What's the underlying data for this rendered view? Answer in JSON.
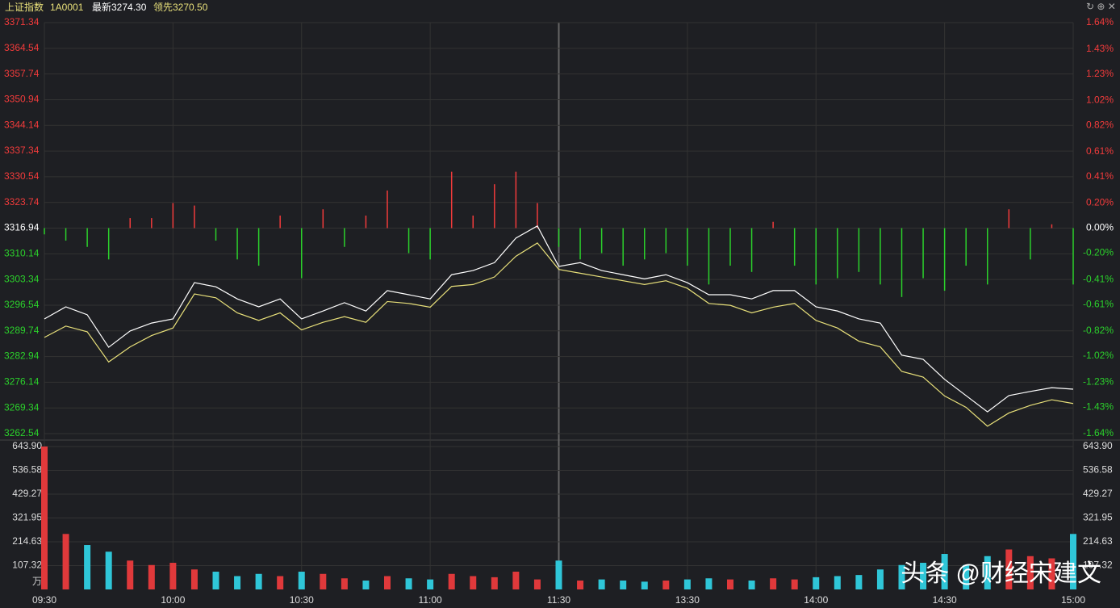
{
  "header": {
    "name": "上证指数",
    "code": "1A0001",
    "latest": "最新3274.30",
    "lead": "领先3270.50"
  },
  "watermark": "头条 @财经宋建文",
  "chart_data": [
    {
      "type": "line",
      "base": 3316.94,
      "x": [
        "09:30",
        "09:35",
        "09:40",
        "09:45",
        "09:50",
        "09:55",
        "10:00",
        "10:05",
        "10:10",
        "10:15",
        "10:20",
        "10:25",
        "10:30",
        "10:35",
        "10:40",
        "10:45",
        "10:50",
        "10:55",
        "11:00",
        "11:05",
        "11:10",
        "11:15",
        "11:20",
        "11:25",
        "11:30",
        "13:05",
        "13:10",
        "13:15",
        "13:20",
        "13:25",
        "13:30",
        "13:35",
        "13:40",
        "13:45",
        "13:50",
        "13:55",
        "14:00",
        "14:05",
        "14:10",
        "14:15",
        "14:20",
        "14:25",
        "14:30",
        "14:35",
        "14:40",
        "14:45",
        "14:50",
        "14:55",
        "15:00"
      ],
      "xticks": [
        "09:30",
        "10:00",
        "10:30",
        "11:00",
        "11:30",
        "13:30",
        "14:00",
        "14:30",
        "15:00"
      ],
      "ylim": [
        3262.54,
        3371.34
      ],
      "yticks": [
        3371.34,
        3364.54,
        3357.74,
        3350.94,
        3344.14,
        3337.34,
        3330.54,
        3323.74,
        3316.94,
        3310.14,
        3303.34,
        3296.54,
        3289.74,
        3282.94,
        3276.14,
        3269.34,
        3262.54
      ],
      "y2lim": [
        -1.64,
        1.64
      ],
      "y2ticks": [
        {
          "value": 1.64,
          "label": "1.64%"
        },
        {
          "value": 1.43,
          "label": "1.43%"
        },
        {
          "value": 1.23,
          "label": "1.23%"
        },
        {
          "value": 1.02,
          "label": "1.02%"
        },
        {
          "value": 0.82,
          "label": "0.82%"
        },
        {
          "value": 0.61,
          "label": "0.61%"
        },
        {
          "value": 0.41,
          "label": "0.41%"
        },
        {
          "value": 0.2,
          "label": "0.20%"
        },
        {
          "value": 0,
          "label": "0.00%"
        },
        {
          "value": -0.2,
          "label": "-0.20%"
        },
        {
          "value": -0.41,
          "label": "-0.41%"
        },
        {
          "value": -0.61,
          "label": "-0.61%"
        },
        {
          "value": -0.82,
          "label": "-0.82%"
        },
        {
          "value": -1.02,
          "label": "-1.02%"
        },
        {
          "value": -1.23,
          "label": "-1.23%"
        },
        {
          "value": -1.43,
          "label": "-1.43%"
        },
        {
          "value": -1.64,
          "label": "-1.64%"
        }
      ],
      "up_color": "#f23b3b",
      "down_color": "#2bd12b",
      "flat_color": "#ffffff",
      "series": [
        {
          "color": "#ffffff",
          "values": [
            3292.9,
            3296.1,
            3294.0,
            3285.4,
            3289.7,
            3291.8,
            3292.9,
            3302.5,
            3301.4,
            3298.2,
            3296.1,
            3298.2,
            3292.9,
            3295.0,
            3297.2,
            3295.0,
            3300.4,
            3299.3,
            3298.2,
            3304.6,
            3305.7,
            3307.8,
            3314.3,
            3317.5,
            3306.8,
            3307.8,
            3305.7,
            3304.6,
            3303.5,
            3304.6,
            3302.5,
            3299.3,
            3299.3,
            3298.2,
            3300.4,
            3300.4,
            3296.1,
            3295.0,
            3292.9,
            3291.8,
            3283.3,
            3282.2,
            3276.9,
            3272.6,
            3268.3,
            3272.6,
            3273.7,
            3274.7,
            3274.3
          ]
        },
        {
          "color": "#e8e07a",
          "values": [
            3288.0,
            3291.0,
            3289.5,
            3281.5,
            3285.5,
            3288.5,
            3290.5,
            3299.5,
            3298.5,
            3294.5,
            3292.5,
            3294.5,
            3290.0,
            3292.0,
            3293.5,
            3292.0,
            3297.5,
            3297.0,
            3296.0,
            3301.5,
            3302.0,
            3304.0,
            3309.5,
            3313.0,
            3306.0,
            3305.0,
            3304.0,
            3303.0,
            3302.0,
            3303.0,
            3301.0,
            3297.0,
            3296.5,
            3294.5,
            3296.0,
            3297.0,
            3292.5,
            3290.5,
            3287.0,
            3285.5,
            3279.0,
            3277.5,
            3272.5,
            3269.5,
            3264.5,
            3268.0,
            3270.0,
            3271.5,
            3270.5
          ]
        }
      ],
      "breadth": {
        "axis": "y2",
        "values": [
          -0.05,
          -0.1,
          -0.15,
          -0.25,
          0.08,
          0.08,
          0.2,
          0.18,
          -0.1,
          -0.25,
          -0.3,
          0.1,
          -0.4,
          0.15,
          -0.15,
          0.1,
          0.3,
          -0.2,
          -0.25,
          0.45,
          0.1,
          0.35,
          0.45,
          0.2,
          -0.15,
          -0.25,
          -0.2,
          -0.3,
          -0.25,
          -0.2,
          -0.3,
          -0.45,
          -0.3,
          -0.35,
          0.05,
          -0.3,
          -0.45,
          -0.4,
          -0.35,
          -0.45,
          -0.55,
          -0.4,
          -0.5,
          -0.3,
          -0.45,
          0.15,
          -0.25,
          0.03,
          -0.45
        ]
      }
    },
    {
      "type": "bar",
      "unit": "万",
      "x": [
        "09:30",
        "09:35",
        "09:40",
        "09:45",
        "09:50",
        "09:55",
        "10:00",
        "10:05",
        "10:10",
        "10:15",
        "10:20",
        "10:25",
        "10:30",
        "10:35",
        "10:40",
        "10:45",
        "10:50",
        "10:55",
        "11:00",
        "11:05",
        "11:10",
        "11:15",
        "11:20",
        "11:25",
        "11:30",
        "13:05",
        "13:10",
        "13:15",
        "13:20",
        "13:25",
        "13:30",
        "13:35",
        "13:40",
        "13:45",
        "13:50",
        "13:55",
        "14:00",
        "14:05",
        "14:10",
        "14:15",
        "14:20",
        "14:25",
        "14:30",
        "14:35",
        "14:40",
        "14:45",
        "14:50",
        "14:55",
        "15:00"
      ],
      "ylim": [
        0,
        643.9
      ],
      "yticks": [
        107.32,
        214.63,
        321.95,
        429.27,
        536.58,
        {
          "value": 643.9,
          "label": "643.90"
        }
      ],
      "up_color": "#e0393b",
      "down_color": "#2fc6d8",
      "values": [
        643.9,
        250,
        200,
        170,
        130,
        110,
        120,
        90,
        80,
        60,
        70,
        60,
        80,
        70,
        50,
        40,
        60,
        50,
        45,
        70,
        60,
        55,
        80,
        45,
        130,
        40,
        45,
        40,
        35,
        40,
        45,
        50,
        45,
        40,
        50,
        45,
        55,
        60,
        65,
        90,
        110,
        120,
        160,
        110,
        150,
        180,
        150,
        140,
        250
      ]
    }
  ]
}
